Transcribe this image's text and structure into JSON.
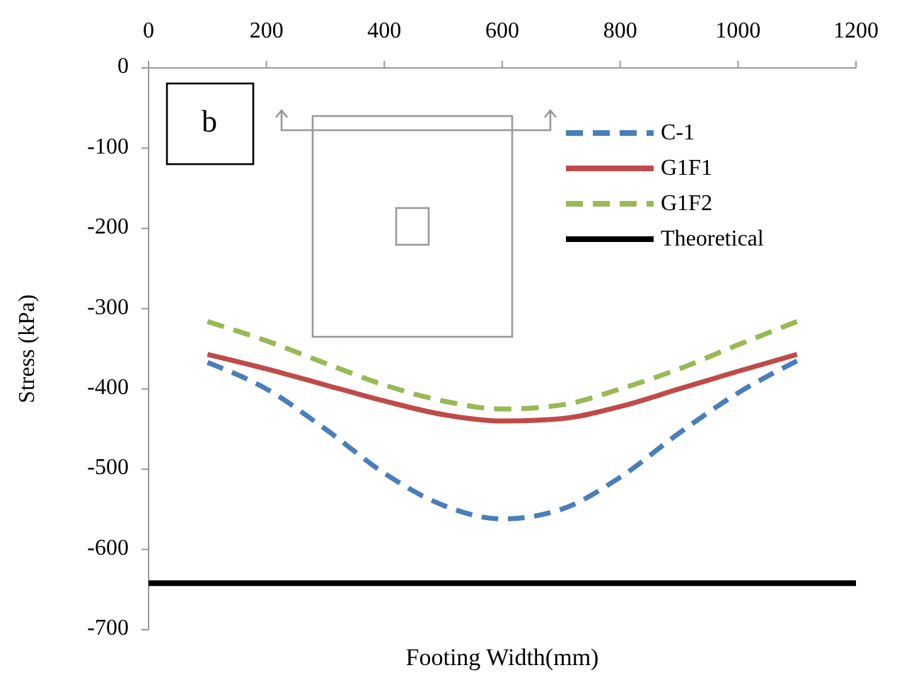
{
  "chart_data": {
    "type": "line",
    "xlabel": "Footing Width(mm)",
    "ylabel": "Stress (kPa)",
    "annotations": [
      "b"
    ],
    "xlim": [
      0,
      1200
    ],
    "xticks": [
      0,
      200,
      400,
      600,
      800,
      1000,
      1200
    ],
    "ylim": [
      -700,
      0
    ],
    "yticks": [
      -700,
      -600,
      -500,
      -400,
      -300,
      -200,
      -100,
      0
    ],
    "grid": false,
    "legend": "top right",
    "x": [
      100,
      200,
      300,
      400,
      500,
      600,
      700,
      800,
      900,
      1000,
      1100
    ],
    "series": [
      {
        "name": "C-1",
        "color": "#4a7ebb",
        "line_style": "dashed",
        "values": [
          -367,
          -400,
          -450,
          -505,
          -545,
          -562,
          -550,
          -510,
          -455,
          -405,
          -365
        ]
      },
      {
        "name": "G1F1",
        "color": "#be4b48",
        "line_style": "solid",
        "values": [
          -357,
          -375,
          -395,
          -415,
          -432,
          -440,
          -437,
          -422,
          -400,
          -378,
          -357
        ]
      },
      {
        "name": "G1F2",
        "color": "#98b954",
        "line_style": "dashed",
        "values": [
          -316,
          -340,
          -368,
          -395,
          -415,
          -425,
          -420,
          -400,
          -375,
          -345,
          -316
        ]
      },
      {
        "name": "Theoretical",
        "color": "#000000",
        "line_style": "solid",
        "x": [
          0,
          1200
        ],
        "values": [
          -642,
          -642
        ]
      }
    ]
  }
}
